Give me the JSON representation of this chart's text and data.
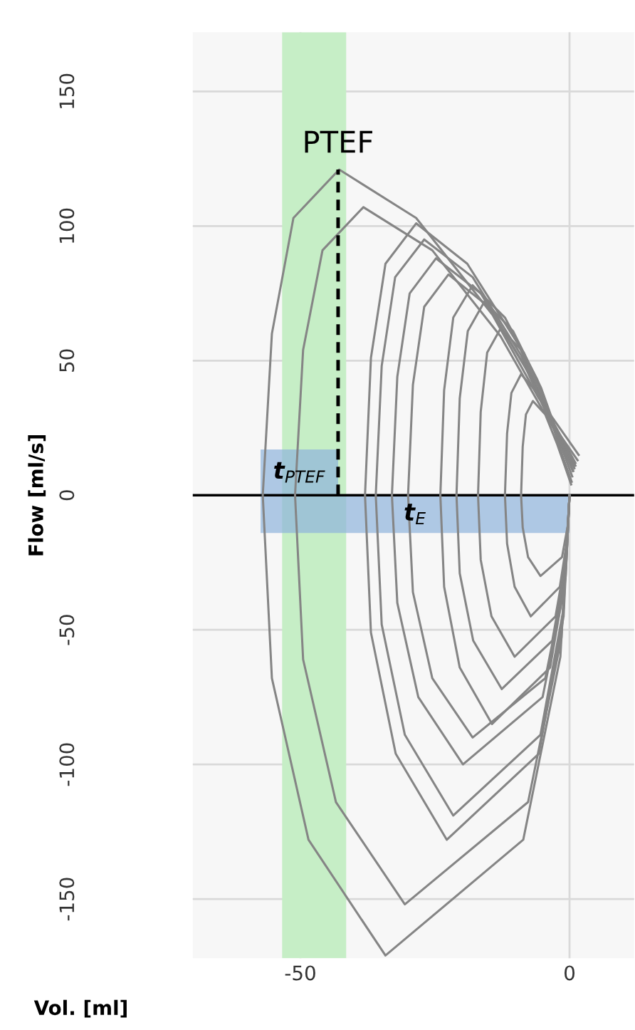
{
  "chart_data": {
    "type": "line",
    "xlabel": "Vol. [ml]",
    "ylabel": "Flow [ml/s]",
    "xlim": [
      -70,
      12
    ],
    "ylim": [
      -172,
      172
    ],
    "xticks": [
      -50,
      0
    ],
    "yticks": [
      -150,
      -100,
      -50,
      0,
      50,
      100,
      150
    ],
    "grid": true,
    "bands": [
      {
        "axis": "x",
        "from": -53.4,
        "to": -41.5,
        "color": "#c6eec6"
      }
    ],
    "ref_lines": [
      {
        "axis": "y",
        "value": 0,
        "color": "#000000"
      }
    ],
    "series": [
      {
        "type": "area",
        "name": "t$_{E}$",
        "color": "#8fb3dc",
        "x": [
          -57.4,
          0
        ],
        "values": [
          -14,
          -14
        ]
      },
      {
        "type": "area",
        "name": "t$_{PTEF}$",
        "color": "#8fb3dc",
        "x": [
          -57.4,
          -43
        ],
        "values": [
          17,
          17
        ]
      },
      {
        "color": "#858585",
        "x": [
          0,
          -1.7,
          -8.6,
          -34.2,
          -48.5,
          -55.3,
          -57,
          -55.3,
          -51.3,
          -42.8,
          -28.5,
          -14.3,
          -5.7,
          1.7
        ],
        "values": [
          0,
          -60,
          -128,
          -171,
          -128,
          -68,
          0,
          60,
          103,
          121,
          103,
          67,
          36,
          15
        ]
      },
      {
        "color": "#858585",
        "x": [
          0,
          -1.5,
          -7.7,
          -30.6,
          -43.4,
          -49.5,
          -51,
          -49.5,
          -45.9,
          -38.3,
          -25.5,
          -12.8,
          -5.1,
          1.5
        ],
        "values": [
          0,
          -53,
          -114,
          -152,
          -114,
          -61,
          0,
          54,
          91,
          107,
          91,
          59,
          32,
          13
        ]
      },
      {
        "color": "#858585",
        "x": [
          0,
          -1.1,
          -5.7,
          -22.8,
          -32.3,
          -36.9,
          -38,
          -36.9,
          -34.2,
          -28.5,
          -19,
          -9.5,
          -3.8,
          1.1
        ],
        "values": [
          0,
          -45,
          -96,
          -128,
          -96,
          -51,
          0,
          51,
          86,
          101,
          86,
          56,
          30,
          12
        ]
      },
      {
        "color": "#858585",
        "x": [
          0,
          -1.1,
          -5.4,
          -21.6,
          -30.6,
          -34.9,
          -36,
          -34.9,
          -32.4,
          -27,
          -18,
          -9,
          -3.6,
          1.1
        ],
        "values": [
          0,
          -42,
          -89,
          -119,
          -89,
          -48,
          0,
          48,
          81,
          95,
          81,
          52,
          29,
          11
        ]
      },
      {
        "color": "#858585",
        "x": [
          0,
          -1,
          -5,
          -19.8,
          -28.1,
          -32,
          -33,
          -32,
          -29.7,
          -24.8,
          -16.5,
          -8.3,
          -3.3,
          1
        ],
        "values": [
          0,
          -35,
          -75,
          -100,
          -75,
          -40,
          0,
          44,
          75,
          88,
          75,
          48,
          26,
          11
        ]
      },
      {
        "color": "#858585",
        "x": [
          0,
          -0.9,
          -4.5,
          -18,
          -25.5,
          -29.1,
          -30,
          -29.1,
          -27,
          -22.5,
          -15,
          -7.5,
          -3,
          0.9
        ],
        "values": [
          0,
          -32,
          -68,
          -90,
          -68,
          -36,
          0,
          41,
          70,
          82,
          70,
          45,
          25,
          10
        ]
      },
      {
        "color": "#858585",
        "x": [
          0,
          -0.7,
          -3.6,
          -14.4,
          -20.4,
          -23.3,
          -24,
          -23.3,
          -21.6,
          -18,
          -12,
          -6,
          -2.4,
          0.7
        ],
        "values": [
          0,
          -30,
          -64,
          -85,
          -64,
          -34,
          0,
          39,
          66,
          78,
          66,
          43,
          23,
          9
        ]
      },
      {
        "color": "#858585",
        "x": [
          0,
          -0.6,
          -3.2,
          -12.6,
          -17.9,
          -20.4,
          -21,
          -20.4,
          -18.9,
          -15.8,
          -10.5,
          -5.3,
          -2.1,
          0.6
        ],
        "values": [
          0,
          -25,
          -54,
          -72,
          -54,
          -29,
          0,
          36,
          61,
          72,
          61,
          40,
          22,
          9
        ]
      },
      {
        "color": "#858585",
        "x": [
          0,
          -0.5,
          -2.6,
          -10.2,
          -14.5,
          -16.5,
          -17,
          -16.5,
          -15.3,
          -12.8,
          -8.5,
          -4.3,
          -1.7,
          0.5
        ],
        "values": [
          0,
          -21,
          -45,
          -60,
          -45,
          -24,
          0,
          31,
          53,
          62,
          53,
          34,
          19,
          7
        ]
      },
      {
        "color": "#858585",
        "x": [
          0,
          -0.4,
          -1.8,
          -7.2,
          -10.2,
          -11.6,
          -12,
          -11.6,
          -10.8,
          -9,
          -6,
          -3,
          -1.2,
          0.4
        ],
        "values": [
          0,
          -16,
          -34,
          -45,
          -34,
          -18,
          0,
          23,
          38,
          45,
          38,
          25,
          14,
          5
        ]
      },
      {
        "color": "#858585",
        "x": [
          0,
          -0.3,
          -1.4,
          -5.4,
          -7.7,
          -8.7,
          -9,
          -8.7,
          -8.1,
          -6.8,
          -4.5,
          -2.3,
          -0.9,
          0.3
        ],
        "values": [
          0,
          -11,
          -23,
          -30,
          -23,
          -12,
          0,
          18,
          30,
          35,
          30,
          19,
          11,
          4
        ]
      },
      {
        "name": "PTEF",
        "color": "#000000",
        "line_style": "dashed",
        "x": [
          -43,
          -43
        ],
        "values": [
          0,
          121
        ]
      }
    ]
  }
}
